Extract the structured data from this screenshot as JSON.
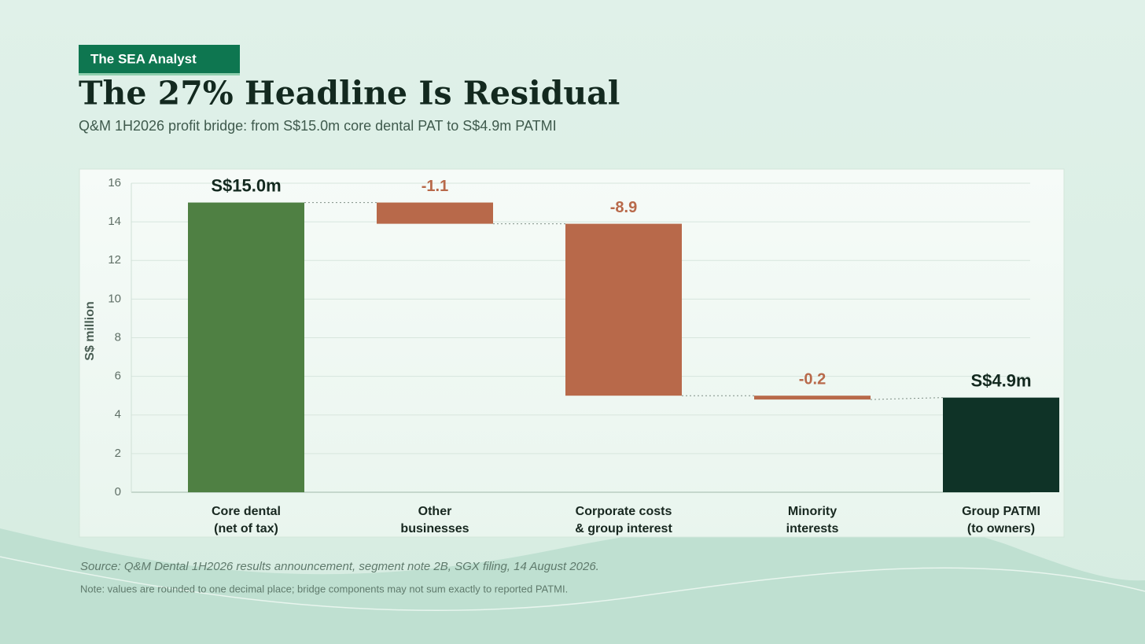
{
  "brand": "The SEA Analyst",
  "chart_data": {
    "type": "waterfall",
    "title": "The 27% Headline Is Residual",
    "subtitle": "Q&M 1H2026 profit bridge: from S$15.0m core dental PAT to S$4.9m PATMI",
    "y_label": "S$ million",
    "categories": [
      "Core dental\n(net of tax)",
      "Other\nbusinesses",
      "Corporate costs\n& group interest",
      "Minority\ninterests",
      "Group PATMI\n(to owners)"
    ],
    "values": [
      15.0,
      -1.1,
      -8.9,
      -0.2,
      4.9
    ],
    "value_labels": [
      "S$15.0m",
      "-1.1",
      "-8.9",
      "-0.2",
      "S$4.9m"
    ],
    "measure": [
      "absolute",
      "relative",
      "relative",
      "relative",
      "total"
    ],
    "colors": [
      "#4f8043",
      "#b8694a",
      "#b8694a",
      "#b8694a",
      "#0f3327"
    ],
    "ylim": [
      0,
      16
    ],
    "yticks": [
      0,
      2,
      4,
      6,
      8,
      10,
      12,
      14,
      16
    ],
    "grid": true
  },
  "source": "Source: Q&M Dental 1H2026 results announcement, segment note 2B, SGX filing, 14 August 2026.",
  "note": "Note: values are rounded to one decimal place; bridge components may not sum exactly to reported PATMI."
}
